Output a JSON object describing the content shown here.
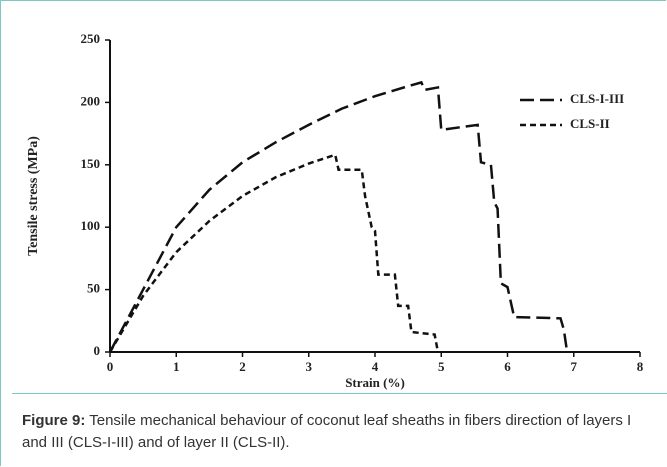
{
  "chart_data": {
    "type": "line",
    "ylabel": "Tensile stress (MPa)",
    "xlabel": "Strain (%)",
    "xlim": [
      0,
      8
    ],
    "xticks": [
      0,
      1,
      2,
      3,
      4,
      5,
      6,
      7,
      8
    ],
    "ylim": [
      0,
      250
    ],
    "yticks": [
      0,
      50,
      100,
      150,
      200,
      250
    ],
    "legend": "upper right",
    "series": [
      {
        "name": "CLS-I-III",
        "color": "#111111",
        "dash": "long",
        "x": [
          0,
          0.5,
          1,
          1.5,
          2,
          2.5,
          3,
          3.5,
          4,
          4.5,
          4.7,
          4.75,
          4.95,
          5,
          5.55,
          5.6,
          5.75,
          5.8,
          5.85,
          5.9,
          6.0,
          6.1,
          6.8,
          6.85,
          6.9
        ],
        "values": [
          0,
          50,
          100,
          130,
          152,
          168,
          182,
          195,
          205,
          213,
          216,
          210,
          212,
          178,
          182,
          152,
          150,
          120,
          115,
          55,
          52,
          28,
          27,
          18,
          0
        ]
      },
      {
        "name": "CLS-II",
        "color": "#111111",
        "dash": "short",
        "x": [
          0,
          0.5,
          1,
          1.5,
          2,
          2.5,
          3,
          3.4,
          3.45,
          3.8,
          3.85,
          3.95,
          4.0,
          4.05,
          4.3,
          4.35,
          4.5,
          4.55,
          4.9,
          4.95
        ],
        "values": [
          0,
          45,
          80,
          105,
          125,
          140,
          151,
          158,
          146,
          146,
          125,
          100,
          97,
          62,
          62,
          37,
          37,
          16,
          14,
          0
        ]
      }
    ]
  },
  "caption": {
    "label": "Figure 9:",
    "text": "Tensile mechanical behaviour of coconut leaf sheaths in fibers direction of layers I and III (CLS-I-III) and of layer II (CLS-II)."
  }
}
